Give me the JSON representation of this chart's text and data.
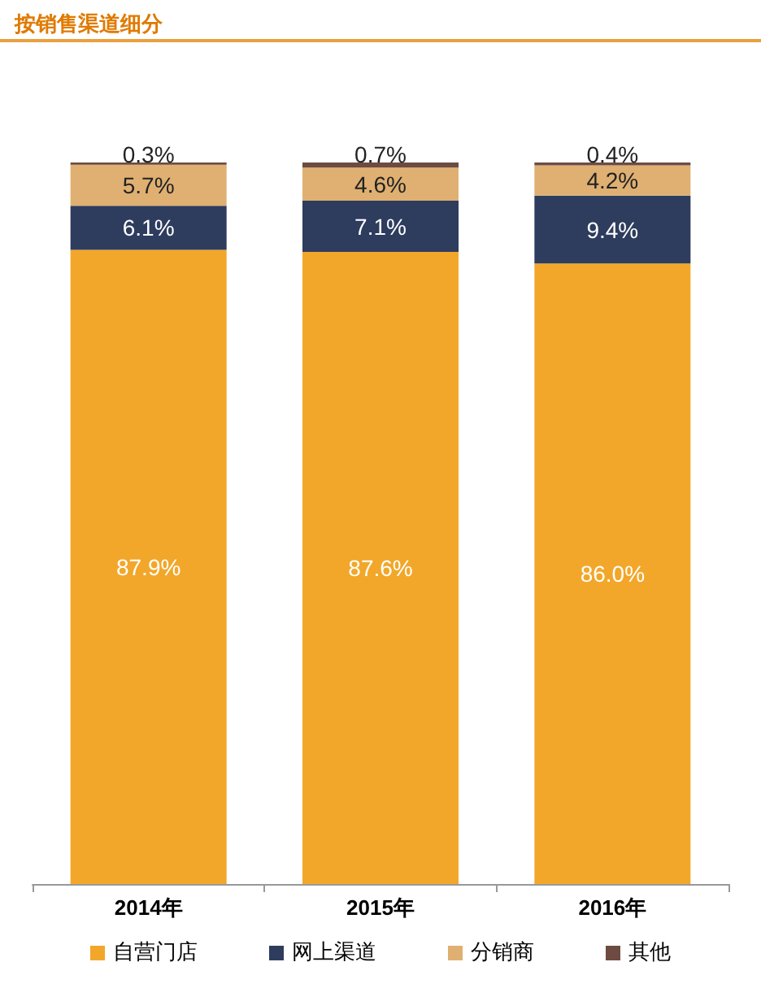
{
  "chart_data": {
    "type": "bar",
    "title": "按销售渠道细分",
    "categories": [
      "2014年",
      "2015年",
      "2016年"
    ],
    "stacked": true,
    "data_labels": true,
    "legend": "bottom",
    "tick_labels": "x",
    "series": [
      {
        "name": "自营门店",
        "color": "#f2a72a",
        "values": [
          87.9,
          87.6,
          86.0
        ],
        "value_labels": [
          "87.9%",
          "87.6%",
          "86.0%"
        ]
      },
      {
        "name": "网上渠道",
        "color": "#2e3c5e",
        "values": [
          6.1,
          7.1,
          9.4
        ],
        "value_labels": [
          "6.1%",
          "7.1%",
          "9.4%"
        ]
      },
      {
        "name": "分销商",
        "color": "#dfb072",
        "values": [
          5.7,
          4.6,
          4.2
        ],
        "value_labels": [
          "5.7%",
          "4.6%",
          "4.2%"
        ]
      },
      {
        "name": "其他",
        "color": "#6e4b40",
        "values": [
          0.3,
          0.7,
          0.4
        ],
        "value_labels": [
          "0.3%",
          "0.7%",
          "0.4%"
        ]
      }
    ]
  }
}
